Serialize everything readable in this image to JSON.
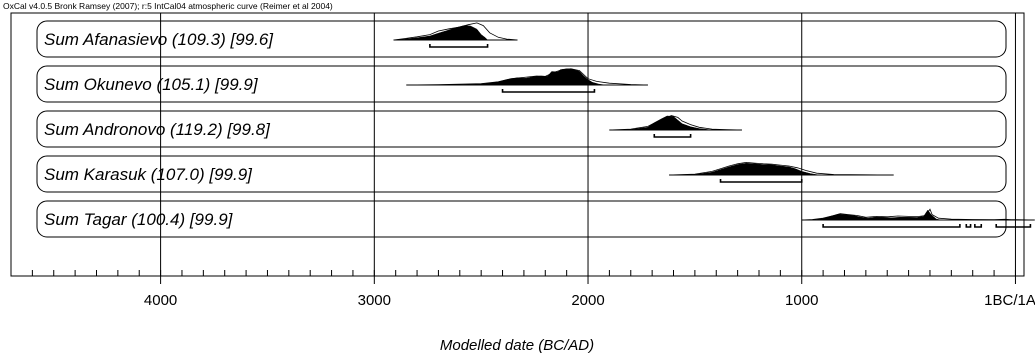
{
  "chart_data": {
    "type": "area",
    "header": "OxCal v4.0.5 Bronk Ramsey (2007); r:5 IntCal04 atmospheric curve (Reimer et al 2004)",
    "xlabel": "Modelled date (BC/AD)",
    "x_direction": "descending",
    "xlim": [
      4700,
      -40
    ],
    "x_ticks": [
      {
        "value": 4000,
        "label": "4000"
      },
      {
        "value": 3000,
        "label": "3000"
      },
      {
        "value": 2000,
        "label": "2000"
      },
      {
        "value": 1000,
        "label": "1000"
      },
      {
        "value": 0,
        "label": "1BC/1AD"
      }
    ],
    "rows": [
      {
        "label": "Sum Afanasievo (109.3) [99.6]",
        "range": [
          2910,
          2330
        ],
        "prior": [
          [
            2910,
            0
          ],
          [
            2860,
            0.08
          ],
          [
            2800,
            0.18
          ],
          [
            2740,
            0.3
          ],
          [
            2700,
            0.5
          ],
          [
            2650,
            0.62
          ],
          [
            2600,
            0.72
          ],
          [
            2560,
            0.85
          ],
          [
            2520,
            0.95
          ],
          [
            2490,
            0.8
          ],
          [
            2460,
            0.4
          ],
          [
            2420,
            0.15
          ],
          [
            2380,
            0.05
          ],
          [
            2330,
            0
          ]
        ],
        "posterior": [
          [
            2910,
            0
          ],
          [
            2860,
            0.05
          ],
          [
            2800,
            0.12
          ],
          [
            2740,
            0.22
          ],
          [
            2700,
            0.38
          ],
          [
            2660,
            0.52
          ],
          [
            2620,
            0.68
          ],
          [
            2580,
            0.8
          ],
          [
            2550,
            0.78
          ],
          [
            2520,
            0.6
          ],
          [
            2500,
            0.3
          ],
          [
            2480,
            0.12
          ],
          [
            2470,
            0
          ]
        ],
        "hpd": [
          [
            2740,
            2470
          ]
        ]
      },
      {
        "label": "Sum Okunevo (105.1) [99.9]",
        "range": [
          2850,
          1720
        ],
        "prior": [
          [
            2850,
            0
          ],
          [
            2700,
            0.02
          ],
          [
            2500,
            0.08
          ],
          [
            2420,
            0.18
          ],
          [
            2360,
            0.35
          ],
          [
            2300,
            0.42
          ],
          [
            2240,
            0.5
          ],
          [
            2200,
            0.48
          ],
          [
            2160,
            0.7
          ],
          [
            2120,
            0.85
          ],
          [
            2080,
            0.9
          ],
          [
            2040,
            0.8
          ],
          [
            2000,
            0.35
          ],
          [
            1960,
            0.2
          ],
          [
            1900,
            0.1
          ],
          [
            1800,
            0.03
          ],
          [
            1720,
            0
          ]
        ],
        "posterior": [
          [
            2850,
            0
          ],
          [
            2600,
            0.02
          ],
          [
            2480,
            0.08
          ],
          [
            2420,
            0.18
          ],
          [
            2380,
            0.3
          ],
          [
            2330,
            0.4
          ],
          [
            2290,
            0.38
          ],
          [
            2260,
            0.45
          ],
          [
            2220,
            0.5
          ],
          [
            2190,
            0.48
          ],
          [
            2170,
            0.75
          ],
          [
            2140,
            0.72
          ],
          [
            2130,
            0.85
          ],
          [
            2100,
            0.9
          ],
          [
            2070,
            0.88
          ],
          [
            2040,
            0.75
          ],
          [
            2020,
            0.5
          ],
          [
            2000,
            0.3
          ],
          [
            1980,
            0.15
          ],
          [
            1950,
            0.05
          ],
          [
            1920,
            0
          ]
        ],
        "hpd": [
          [
            2400,
            1970
          ]
        ]
      },
      {
        "label": "Sum Andronovo (119.2) [99.8]",
        "range": [
          1900,
          1280
        ],
        "prior": [
          [
            1900,
            0
          ],
          [
            1800,
            0.05
          ],
          [
            1720,
            0.2
          ],
          [
            1680,
            0.45
          ],
          [
            1640,
            0.65
          ],
          [
            1610,
            0.8
          ],
          [
            1580,
            0.7
          ],
          [
            1560,
            0.5
          ],
          [
            1520,
            0.3
          ],
          [
            1480,
            0.15
          ],
          [
            1420,
            0.05
          ],
          [
            1350,
            0.02
          ],
          [
            1280,
            0
          ]
        ],
        "posterior": [
          [
            1900,
            0
          ],
          [
            1800,
            0.03
          ],
          [
            1720,
            0.15
          ],
          [
            1690,
            0.4
          ],
          [
            1660,
            0.6
          ],
          [
            1630,
            0.78
          ],
          [
            1600,
            0.75
          ],
          [
            1580,
            0.55
          ],
          [
            1560,
            0.35
          ],
          [
            1520,
            0.18
          ],
          [
            1480,
            0.08
          ],
          [
            1420,
            0
          ]
        ],
        "hpd": [
          [
            1690,
            1520
          ]
        ]
      },
      {
        "label": "Sum Karasuk (107.0) [99.9]",
        "range": [
          1620,
          570
        ],
        "prior": [
          [
            1620,
            0
          ],
          [
            1500,
            0.05
          ],
          [
            1420,
            0.2
          ],
          [
            1380,
            0.35
          ],
          [
            1340,
            0.5
          ],
          [
            1300,
            0.62
          ],
          [
            1260,
            0.7
          ],
          [
            1220,
            0.66
          ],
          [
            1180,
            0.62
          ],
          [
            1140,
            0.6
          ],
          [
            1100,
            0.55
          ],
          [
            1060,
            0.5
          ],
          [
            1020,
            0.4
          ],
          [
            980,
            0.25
          ],
          [
            930,
            0.1
          ],
          [
            850,
            0.03
          ],
          [
            700,
            0.01
          ],
          [
            570,
            0
          ]
        ],
        "posterior": [
          [
            1620,
            0
          ],
          [
            1500,
            0.03
          ],
          [
            1420,
            0.15
          ],
          [
            1380,
            0.3
          ],
          [
            1340,
            0.45
          ],
          [
            1300,
            0.58
          ],
          [
            1260,
            0.65
          ],
          [
            1220,
            0.62
          ],
          [
            1180,
            0.58
          ],
          [
            1140,
            0.56
          ],
          [
            1100,
            0.5
          ],
          [
            1060,
            0.45
          ],
          [
            1030,
            0.35
          ],
          [
            1000,
            0.2
          ],
          [
            960,
            0.08
          ],
          [
            920,
            0
          ]
        ],
        "hpd": [
          [
            1380,
            1000
          ]
        ]
      },
      {
        "label": "Sum Tagar (100.4) [99.9]",
        "range": [
          1000,
          -90
        ],
        "prior": [
          [
            1000,
            0
          ],
          [
            950,
            0.03
          ],
          [
            900,
            0.1
          ],
          [
            850,
            0.25
          ],
          [
            820,
            0.35
          ],
          [
            780,
            0.3
          ],
          [
            740,
            0.25
          ],
          [
            700,
            0.15
          ],
          [
            650,
            0.2
          ],
          [
            600,
            0.18
          ],
          [
            550,
            0.22
          ],
          [
            500,
            0.2
          ],
          [
            450,
            0.2
          ],
          [
            420,
            0.25
          ],
          [
            400,
            0.6
          ],
          [
            390,
            0.3
          ],
          [
            360,
            0.1
          ],
          [
            300,
            0.05
          ],
          [
            200,
            0.03
          ],
          [
            100,
            0.02
          ],
          [
            50,
            0.04
          ],
          [
            20,
            0.02
          ],
          [
            -90,
            0
          ]
        ],
        "posterior": [
          [
            950,
            0
          ],
          [
            900,
            0.08
          ],
          [
            860,
            0.22
          ],
          [
            830,
            0.32
          ],
          [
            800,
            0.3
          ],
          [
            760,
            0.25
          ],
          [
            720,
            0.15
          ],
          [
            690,
            0.1
          ],
          [
            660,
            0.15
          ],
          [
            620,
            0.15
          ],
          [
            580,
            0.12
          ],
          [
            540,
            0.15
          ],
          [
            500,
            0.15
          ],
          [
            460,
            0.14
          ],
          [
            430,
            0.2
          ],
          [
            410,
            0.55
          ],
          [
            395,
            0.3
          ],
          [
            370,
            0.05
          ],
          [
            350,
            0
          ]
        ],
        "hpd": [
          [
            900,
            260
          ],
          [
            230,
            210
          ],
          [
            190,
            160
          ],
          [
            90,
            -70
          ]
        ]
      }
    ]
  }
}
